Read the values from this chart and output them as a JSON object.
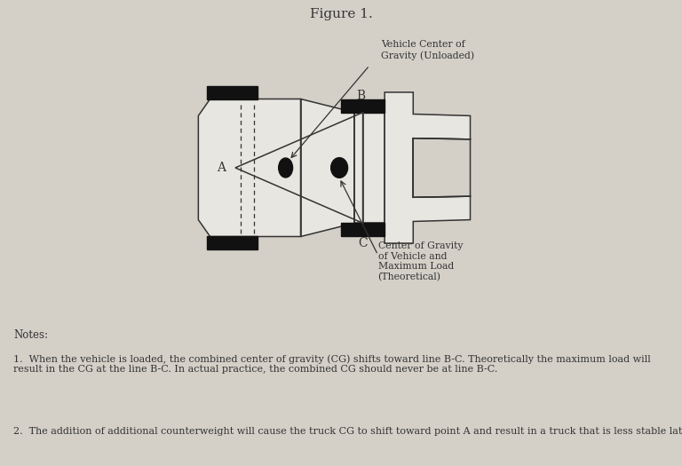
{
  "title": "Figure 1.",
  "bg_color": "#d4d0c8",
  "line_color": "#333333",
  "fill_color": "#e8e6e0",
  "black_color": "#111111",
  "note1_prefix": "1.  ",
  "note1": "When the vehicle is loaded, the combined center of gravity (CG) shifts toward line B-C. Theoretically the maximum load will result in the CG at the line B-C. In actual practice, the combined CG should never be at line B-C.",
  "note2_prefix": "2.  ",
  "note2": "The addition of additional counterweight will cause the truck CG to shift toward point A and result in a truck that is less stable laterally.",
  "label_A": "A",
  "label_B": "B",
  "label_C": "C",
  "label_vehicle_cg": "Vehicle Center of\nGravity (Unloaded)",
  "label_load_cg": "Center of Gravity\nof Vehicle and\nMaximum Load\n(Theoretical)",
  "notes_label": "Notes:"
}
